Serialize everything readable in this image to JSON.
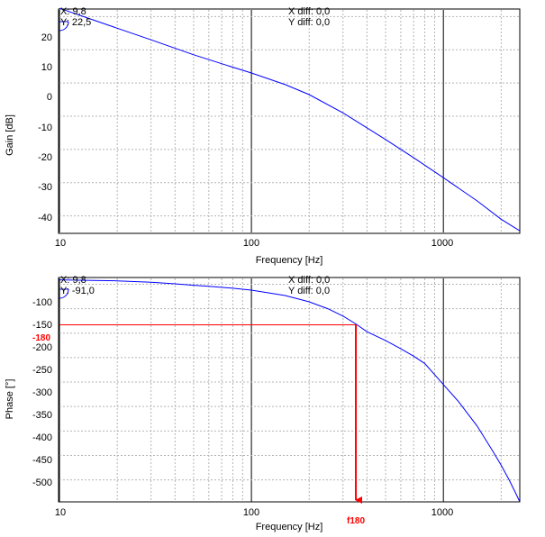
{
  "chart_data": [
    {
      "type": "line",
      "id": "gain",
      "xlabel": "Frequency [Hz]",
      "ylabel": "Gain [dB]",
      "xscale": "log",
      "xlim": [
        10,
        2500
      ],
      "ylim": [
        -45,
        22
      ],
      "xticks": [
        10,
        100,
        1000
      ],
      "xtick_labels": [
        "10",
        "100",
        "1000"
      ],
      "yticks": [
        20,
        10,
        0,
        -10,
        -20,
        -30,
        -40
      ],
      "ytick_labels": [
        "20",
        "10",
        "0",
        "-10",
        "-20",
        "-30",
        "-40"
      ],
      "grid": true,
      "series_color": "#0000ff",
      "series": [
        {
          "x": [
            10,
            15,
            20,
            30,
            50,
            70,
            100,
            150,
            200,
            300,
            400,
            500,
            700,
            1000,
            1500,
            2000,
            2500
          ],
          "y": [
            22.5,
            19,
            16.5,
            13,
            8.5,
            5.8,
            3,
            -0.5,
            -3.5,
            -9,
            -13.5,
            -17,
            -22.5,
            -28.5,
            -35.5,
            -41,
            -44.5
          ]
        }
      ],
      "cursor": {
        "x_text": "X: 9,8",
        "y_text": "Y: 22,5",
        "xdiff_text": "X diff: 0,0",
        "ydiff_text": "Y diff: 0,0"
      }
    },
    {
      "type": "line",
      "id": "phase",
      "xlabel": "Frequency [Hz]",
      "ylabel": "Phase [°]",
      "xscale": "log",
      "xlim": [
        10,
        2500
      ],
      "ylim": [
        -545,
        -88
      ],
      "xticks": [
        10,
        100,
        1000
      ],
      "xtick_labels": [
        "10",
        "100",
        "1000"
      ],
      "yticks": [
        -100,
        -150,
        -200,
        -250,
        -300,
        -350,
        -400,
        -450,
        -500
      ],
      "ytick_labels": [
        "-100",
        "-150",
        "-200",
        "-250",
        "-300",
        "-350",
        "-400",
        "-450",
        "-500"
      ],
      "grid": true,
      "series_color": "#0000ff",
      "series": [
        {
          "x": [
            10,
            15,
            20,
            30,
            40,
            50,
            60,
            80,
            100,
            150,
            200,
            250,
            300,
            350,
            400,
            500,
            600,
            700,
            800,
            1000,
            1200,
            1500,
            1800,
            2000,
            2200,
            2400,
            2500
          ],
          "y": [
            -91,
            -92,
            -93,
            -96,
            -99,
            -102,
            -104,
            -108,
            -112,
            -123,
            -136,
            -150,
            -165,
            -181,
            -197,
            -215,
            -232,
            -247,
            -262,
            -305,
            -340,
            -390,
            -440,
            -470,
            -500,
            -530,
            -545
          ]
        }
      ],
      "cursor": {
        "x_text": "X: 9,8",
        "y_text": "Y: -91,0",
        "xdiff_text": "X diff: 0,0",
        "ydiff_text": "Y diff: 0,0"
      },
      "annotations": {
        "level_label": "-180",
        "level_value": -183,
        "freq_label": "f180",
        "freq_value": 350,
        "color": "#ff0000"
      }
    }
  ]
}
